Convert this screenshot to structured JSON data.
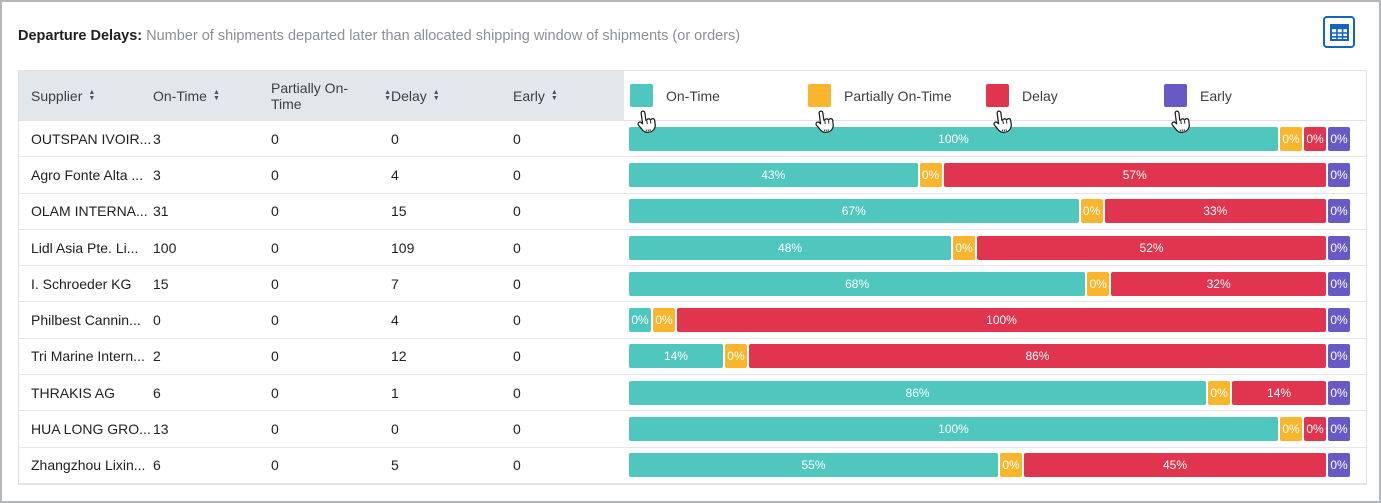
{
  "header": {
    "title": "Departure Delays:",
    "description": "Number of shipments departed later than allocated shipping window of shipments (or orders)",
    "table_view_icon": "table-grid-icon",
    "icon_color": "#1565c0"
  },
  "colors": {
    "on_time": "#50c7be",
    "partially_on_time": "#f9b52b",
    "delay": "#e1344e",
    "early": "#6759c6"
  },
  "table": {
    "columns": [
      {
        "label": "Supplier",
        "sortable": true
      },
      {
        "label": "On-Time",
        "sortable": true
      },
      {
        "label": "Partially On-Time",
        "sortable": true
      },
      {
        "label": "Delay",
        "sortable": true
      },
      {
        "label": "Early",
        "sortable": true
      }
    ],
    "legend": [
      {
        "key": "on_time",
        "label": "On-Time",
        "color": "#50c7be"
      },
      {
        "key": "partially_on_time",
        "label": "Partially On-Time",
        "color": "#f9b52b"
      },
      {
        "key": "delay",
        "label": "Delay",
        "color": "#e1344e"
      },
      {
        "key": "early",
        "label": "Early",
        "color": "#6759c6"
      }
    ],
    "rows": [
      {
        "supplier": "OUTSPAN IVOIR...",
        "on_time": "3",
        "partially_on_time": "0",
        "delay": "0",
        "early": "0",
        "bar": [
          {
            "key": "on_time",
            "value": 100,
            "label": "100%"
          },
          {
            "key": "partially_on_time",
            "value": 0,
            "label": "0%"
          },
          {
            "key": "delay",
            "value": 0,
            "label": "0%"
          },
          {
            "key": "early",
            "value": 0,
            "label": "0%"
          }
        ]
      },
      {
        "supplier": "Agro Fonte Alta ...",
        "on_time": "3",
        "partially_on_time": "0",
        "delay": "4",
        "early": "0",
        "bar": [
          {
            "key": "on_time",
            "value": 43,
            "label": "43%"
          },
          {
            "key": "partially_on_time",
            "value": 0,
            "label": "0%"
          },
          {
            "key": "delay",
            "value": 57,
            "label": "57%"
          },
          {
            "key": "early",
            "value": 0,
            "label": "0%"
          }
        ]
      },
      {
        "supplier": "OLAM INTERNA...",
        "on_time": "31",
        "partially_on_time": "0",
        "delay": "15",
        "early": "0",
        "bar": [
          {
            "key": "on_time",
            "value": 67,
            "label": "67%"
          },
          {
            "key": "partially_on_time",
            "value": 0,
            "label": "0%"
          },
          {
            "key": "delay",
            "value": 33,
            "label": "33%"
          },
          {
            "key": "early",
            "value": 0,
            "label": "0%"
          }
        ]
      },
      {
        "supplier": "Lidl Asia Pte. Li...",
        "on_time": "100",
        "partially_on_time": "0",
        "delay": "109",
        "early": "0",
        "bar": [
          {
            "key": "on_time",
            "value": 48,
            "label": "48%"
          },
          {
            "key": "partially_on_time",
            "value": 0,
            "label": "0%"
          },
          {
            "key": "delay",
            "value": 52,
            "label": "52%"
          },
          {
            "key": "early",
            "value": 0,
            "label": "0%"
          }
        ]
      },
      {
        "supplier": "I. Schroeder KG",
        "on_time": "15",
        "partially_on_time": "0",
        "delay": "7",
        "early": "0",
        "bar": [
          {
            "key": "on_time",
            "value": 68,
            "label": "68%"
          },
          {
            "key": "partially_on_time",
            "value": 0,
            "label": "0%"
          },
          {
            "key": "delay",
            "value": 32,
            "label": "32%"
          },
          {
            "key": "early",
            "value": 0,
            "label": "0%"
          }
        ]
      },
      {
        "supplier": "Philbest Cannin...",
        "on_time": "0",
        "partially_on_time": "0",
        "delay": "4",
        "early": "0",
        "bar": [
          {
            "key": "on_time",
            "value": 0,
            "label": "0%"
          },
          {
            "key": "partially_on_time",
            "value": 0,
            "label": "0%"
          },
          {
            "key": "delay",
            "value": 100,
            "label": "100%"
          },
          {
            "key": "early",
            "value": 0,
            "label": "0%"
          }
        ]
      },
      {
        "supplier": "Tri Marine Intern...",
        "on_time": "2",
        "partially_on_time": "0",
        "delay": "12",
        "early": "0",
        "bar": [
          {
            "key": "on_time",
            "value": 14,
            "label": "14%"
          },
          {
            "key": "partially_on_time",
            "value": 0,
            "label": "0%"
          },
          {
            "key": "delay",
            "value": 86,
            "label": "86%"
          },
          {
            "key": "early",
            "value": 0,
            "label": "0%"
          }
        ]
      },
      {
        "supplier": "THRAKIS AG",
        "on_time": "6",
        "partially_on_time": "0",
        "delay": "1",
        "early": "0",
        "bar": [
          {
            "key": "on_time",
            "value": 86,
            "label": "86%"
          },
          {
            "key": "partially_on_time",
            "value": 0,
            "label": "0%"
          },
          {
            "key": "delay",
            "value": 14,
            "label": "14%"
          },
          {
            "key": "early",
            "value": 0,
            "label": "0%"
          }
        ]
      },
      {
        "supplier": "HUA LONG GRO...",
        "on_time": "13",
        "partially_on_time": "0",
        "delay": "0",
        "early": "0",
        "bar": [
          {
            "key": "on_time",
            "value": 100,
            "label": "100%"
          },
          {
            "key": "partially_on_time",
            "value": 0,
            "label": "0%"
          },
          {
            "key": "delay",
            "value": 0,
            "label": "0%"
          },
          {
            "key": "early",
            "value": 0,
            "label": "0%"
          }
        ]
      },
      {
        "supplier": "Zhangzhou Lixin...",
        "on_time": "6",
        "partially_on_time": "0",
        "delay": "5",
        "early": "0",
        "bar": [
          {
            "key": "on_time",
            "value": 55,
            "label": "55%"
          },
          {
            "key": "partially_on_time",
            "value": 0,
            "label": "0%"
          },
          {
            "key": "delay",
            "value": 45,
            "label": "45%"
          },
          {
            "key": "early",
            "value": 0,
            "label": "0%"
          }
        ]
      }
    ]
  },
  "chart_data": {
    "type": "bar",
    "subtype": "horizontal-stacked-percent",
    "title": "Departure Delays",
    "legend_position": "top",
    "categories": [
      "OUTSPAN IVOIR...",
      "Agro Fonte Alta ...",
      "OLAM INTERNA...",
      "Lidl Asia Pte. Li...",
      "I. Schroeder KG",
      "Philbest Cannin...",
      "Tri Marine Intern...",
      "THRAKIS AG",
      "HUA LONG GRO...",
      "Zhangzhou Lixin..."
    ],
    "series": [
      {
        "name": "On-Time",
        "color": "#50c7be",
        "counts": [
          3,
          3,
          31,
          100,
          15,
          0,
          2,
          6,
          13,
          6
        ],
        "percents": [
          100,
          43,
          67,
          48,
          68,
          0,
          14,
          86,
          100,
          55
        ]
      },
      {
        "name": "Partially On-Time",
        "color": "#f9b52b",
        "counts": [
          0,
          0,
          0,
          0,
          0,
          0,
          0,
          0,
          0,
          0
        ],
        "percents": [
          0,
          0,
          0,
          0,
          0,
          0,
          0,
          0,
          0,
          0
        ]
      },
      {
        "name": "Delay",
        "color": "#e1344e",
        "counts": [
          0,
          4,
          15,
          109,
          7,
          4,
          12,
          1,
          0,
          5
        ],
        "percents": [
          0,
          57,
          33,
          52,
          32,
          100,
          86,
          14,
          0,
          45
        ]
      },
      {
        "name": "Early",
        "color": "#6759c6",
        "counts": [
          0,
          0,
          0,
          0,
          0,
          0,
          0,
          0,
          0,
          0
        ],
        "percents": [
          0,
          0,
          0,
          0,
          0,
          0,
          0,
          0,
          0,
          0
        ]
      }
    ],
    "xlim": [
      0,
      100
    ]
  }
}
